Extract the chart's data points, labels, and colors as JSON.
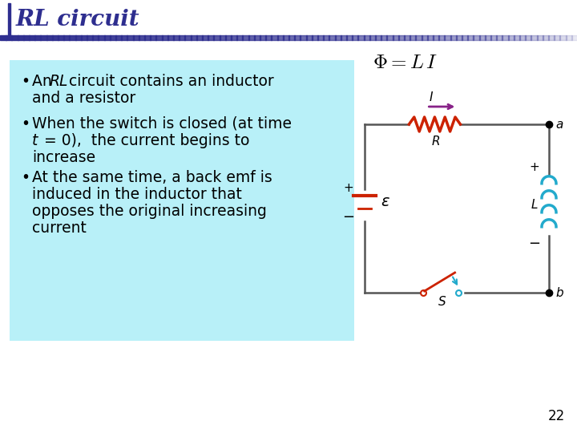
{
  "title": "RL circuit",
  "title_color": "#2e2e8f",
  "title_fontsize": 20,
  "bg_color": "#ffffff",
  "header_bar_color": "#2e2e8f",
  "bullet_box_color": "#b8f0f8",
  "formula": "Φ = LI",
  "page_number": "22",
  "circuit_color": "#555555",
  "resistor_color": "#cc2200",
  "current_arrow_color": "#882288",
  "coil_color": "#22aacc",
  "battery_color": "#cc2200",
  "switch_color1": "#cc2200",
  "switch_color2": "#22aacc",
  "label_color": "#333333"
}
